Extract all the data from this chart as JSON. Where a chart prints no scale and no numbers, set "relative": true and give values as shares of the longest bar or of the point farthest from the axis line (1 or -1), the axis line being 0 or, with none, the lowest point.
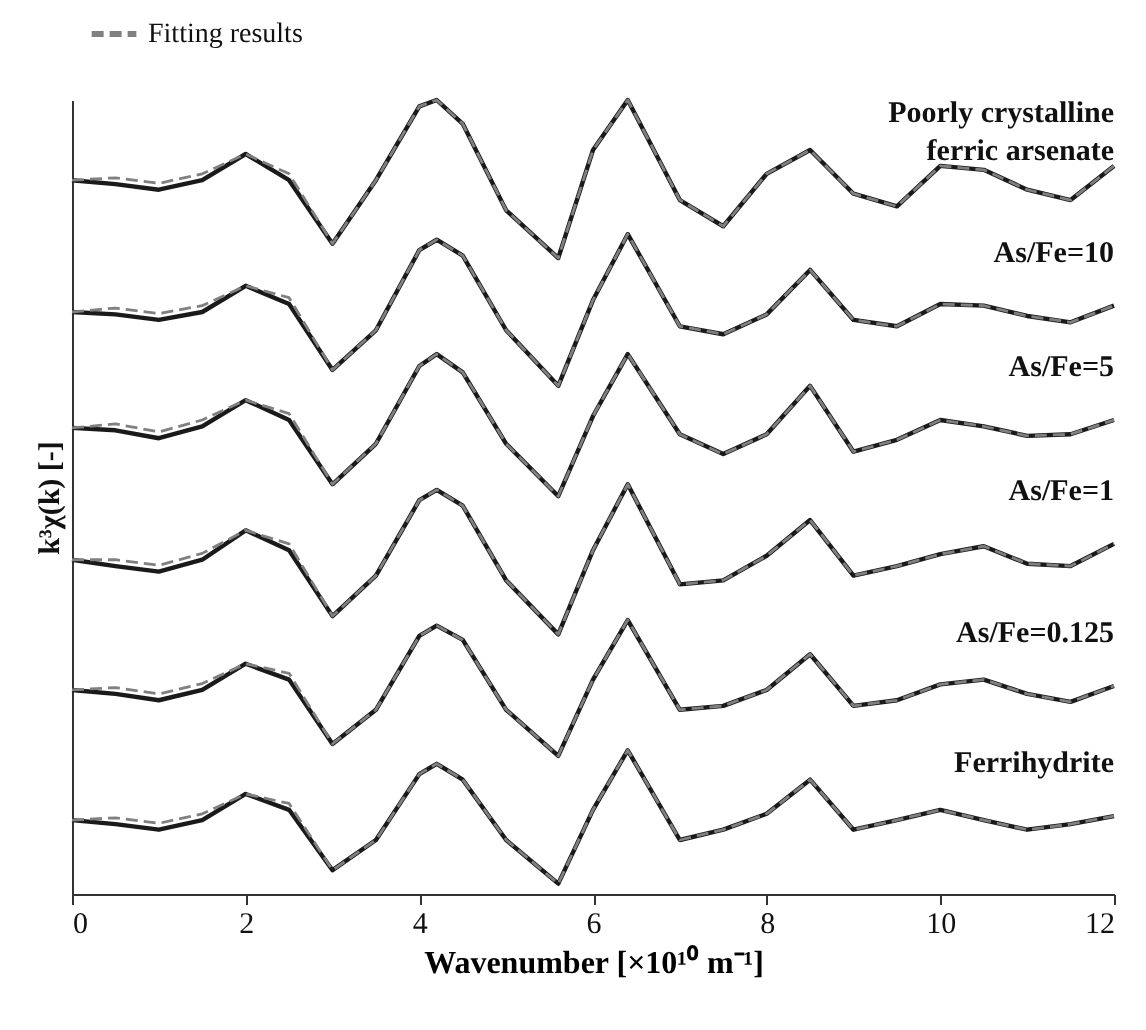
{
  "chart_data": {
    "type": "line",
    "relative": true,
    "xlabel": "Wavenumber [×10¹⁰ m⁻¹]",
    "ylabel": "k³χ(k) [-]",
    "xlim": [
      0,
      12
    ],
    "xticks": [
      0,
      2,
      4,
      6,
      8,
      10,
      12
    ],
    "grid": false,
    "legend": "top left",
    "x": [
      0,
      0.5,
      1,
      1.5,
      2,
      2.5,
      3,
      3.5,
      4,
      4.2,
      4.5,
      5,
      5.6,
      6,
      6.4,
      7,
      7.5,
      8,
      8.5,
      9,
      9.5,
      10,
      10.5,
      11,
      11.5,
      12
    ],
    "series": [
      {
        "name": "Poorly crystalline ferric arsenate",
        "color": "#1a1a1a",
        "values": [
          0.899,
          0.894,
          0.887,
          0.899,
          0.932,
          0.899,
          0.819,
          0.899,
          0.992,
          1.0,
          0.97,
          0.861,
          0.801,
          0.937,
          1.0,
          0.874,
          0.841,
          0.907,
          0.937,
          0.882,
          0.866,
          0.917,
          0.912,
          0.887,
          0.874,
          0.917
        ]
      },
      {
        "name": "As/Fe=10",
        "color": "#1a1a1a",
        "values": [
          0.733,
          0.73,
          0.723,
          0.733,
          0.766,
          0.743,
          0.66,
          0.71,
          0.811,
          0.824,
          0.804,
          0.71,
          0.64,
          0.748,
          0.831,
          0.715,
          0.705,
          0.73,
          0.786,
          0.723,
          0.715,
          0.743,
          0.741,
          0.728,
          0.72,
          0.741
        ]
      },
      {
        "name": "As/Fe=5",
        "color": "#1a1a1a",
        "values": [
          0.587,
          0.584,
          0.574,
          0.589,
          0.622,
          0.597,
          0.516,
          0.567,
          0.665,
          0.68,
          0.657,
          0.567,
          0.501,
          0.602,
          0.68,
          0.579,
          0.554,
          0.579,
          0.64,
          0.557,
          0.572,
          0.597,
          0.589,
          0.577,
          0.579,
          0.597
        ]
      },
      {
        "name": "As/Fe=1",
        "color": "#1a1a1a",
        "values": [
          0.421,
          0.413,
          0.406,
          0.421,
          0.458,
          0.433,
          0.35,
          0.401,
          0.496,
          0.509,
          0.489,
          0.395,
          0.327,
          0.433,
          0.516,
          0.39,
          0.395,
          0.426,
          0.471,
          0.401,
          0.413,
          0.428,
          0.438,
          0.416,
          0.413,
          0.441
        ]
      },
      {
        "name": "As/Fe=0.125",
        "color": "#1a1a1a",
        "values": [
          0.257,
          0.252,
          0.244,
          0.257,
          0.29,
          0.27,
          0.189,
          0.232,
          0.325,
          0.338,
          0.32,
          0.232,
          0.174,
          0.27,
          0.345,
          0.232,
          0.237,
          0.257,
          0.302,
          0.237,
          0.244,
          0.264,
          0.27,
          0.252,
          0.242,
          0.262
        ]
      },
      {
        "name": "Ferrihydrite",
        "color": "#1a1a1a",
        "values": [
          0.093,
          0.088,
          0.081,
          0.093,
          0.126,
          0.106,
          0.03,
          0.068,
          0.151,
          0.164,
          0.144,
          0.068,
          0.013,
          0.106,
          0.181,
          0.068,
          0.081,
          0.101,
          0.144,
          0.081,
          0.093,
          0.106,
          0.093,
          0.081,
          0.088,
          0.098
        ]
      },
      {
        "name": "Fitting results",
        "color": "#808080",
        "line_style": "dashed",
        "values": [
          0.899,
          0.902,
          0.895,
          0.907,
          0.932,
          0.907,
          0.819,
          0.899,
          0.992,
          1.0,
          0.97,
          0.861,
          0.801,
          0.937,
          1.0,
          0.874,
          0.841,
          0.907,
          0.937,
          0.882,
          0.866,
          0.917,
          0.912,
          0.887,
          0.874,
          0.917
        ]
      },
      {
        "color": "#808080",
        "line_style": "dashed",
        "values": [
          0.733,
          0.738,
          0.731,
          0.741,
          0.766,
          0.751,
          0.66,
          0.71,
          0.811,
          0.824,
          0.804,
          0.71,
          0.64,
          0.748,
          0.831,
          0.715,
          0.705,
          0.73,
          0.786,
          0.723,
          0.715,
          0.743,
          0.741,
          0.728,
          0.72,
          0.741
        ]
      },
      {
        "color": "#808080",
        "line_style": "dashed",
        "values": [
          0.587,
          0.592,
          0.582,
          0.597,
          0.622,
          0.605,
          0.516,
          0.567,
          0.665,
          0.68,
          0.657,
          0.567,
          0.501,
          0.602,
          0.68,
          0.579,
          0.554,
          0.579,
          0.64,
          0.557,
          0.572,
          0.597,
          0.589,
          0.577,
          0.579,
          0.597
        ]
      },
      {
        "color": "#808080",
        "line_style": "dashed",
        "values": [
          0.421,
          0.421,
          0.414,
          0.429,
          0.458,
          0.441,
          0.35,
          0.401,
          0.496,
          0.509,
          0.489,
          0.395,
          0.327,
          0.433,
          0.516,
          0.39,
          0.395,
          0.426,
          0.471,
          0.401,
          0.413,
          0.428,
          0.438,
          0.416,
          0.413,
          0.441
        ]
      },
      {
        "color": "#808080",
        "line_style": "dashed",
        "values": [
          0.257,
          0.26,
          0.252,
          0.265,
          0.29,
          0.278,
          0.189,
          0.232,
          0.325,
          0.338,
          0.32,
          0.232,
          0.174,
          0.27,
          0.345,
          0.232,
          0.237,
          0.257,
          0.302,
          0.237,
          0.244,
          0.264,
          0.27,
          0.252,
          0.242,
          0.262
        ]
      },
      {
        "color": "#808080",
        "line_style": "dashed",
        "values": [
          0.093,
          0.096,
          0.089,
          0.101,
          0.126,
          0.114,
          0.03,
          0.068,
          0.151,
          0.164,
          0.144,
          0.068,
          0.013,
          0.106,
          0.181,
          0.068,
          0.081,
          0.101,
          0.144,
          0.081,
          0.093,
          0.106,
          0.093,
          0.081,
          0.088,
          0.098
        ]
      }
    ]
  }
}
